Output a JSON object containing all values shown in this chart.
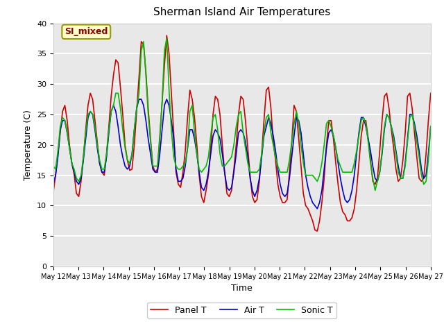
{
  "title": "Sherman Island Air Temperatures",
  "xlabel": "Time",
  "ylabel": "Temperature (C)",
  "annotation": "SI_mixed",
  "ylim": [
    0,
    40
  ],
  "xlim_days": [
    12,
    27
  ],
  "x_tick_labels": [
    "May 12",
    "May 13",
    "May 14",
    "May 15",
    "May 16",
    "May 17",
    "May 18",
    "May 19",
    "May 20",
    "May 21",
    "May 22",
    "May 23",
    "May 24",
    "May 25",
    "May 26",
    "May 27"
  ],
  "yticks": [
    0,
    5,
    10,
    15,
    20,
    25,
    30,
    35,
    40
  ],
  "legend_labels": [
    "Panel T",
    "Air T",
    "Sonic T"
  ],
  "legend_colors": [
    "#cc0000",
    "#0000cc",
    "#00bb00"
  ],
  "background_color": "#e8e8e8",
  "fig_background": "#ffffff",
  "grid_color": "#ffffff",
  "panel_t": [
    12.2,
    15.0,
    18.5,
    22.0,
    25.5,
    26.5,
    24.0,
    20.0,
    17.0,
    15.2,
    12.0,
    11.5,
    14.0,
    18.0,
    22.5,
    26.5,
    28.5,
    27.5,
    24.0,
    20.5,
    17.0,
    15.5,
    15.0,
    18.5,
    23.0,
    28.0,
    31.5,
    34.0,
    33.5,
    29.5,
    25.0,
    20.0,
    17.5,
    15.8,
    16.0,
    20.0,
    25.5,
    31.0,
    37.0,
    36.5,
    32.0,
    26.0,
    21.0,
    16.5,
    15.5,
    16.0,
    21.0,
    27.0,
    33.0,
    38.0,
    35.0,
    28.5,
    22.0,
    15.5,
    13.5,
    13.0,
    15.5,
    19.0,
    24.5,
    29.0,
    27.5,
    24.5,
    20.0,
    15.0,
    11.5,
    10.5,
    12.5,
    15.0,
    19.5,
    25.0,
    28.0,
    27.5,
    25.0,
    20.0,
    15.5,
    12.0,
    11.5,
    12.5,
    16.0,
    20.0,
    25.0,
    28.0,
    27.5,
    24.0,
    19.5,
    15.0,
    11.5,
    10.5,
    11.0,
    14.0,
    18.5,
    24.0,
    29.0,
    29.5,
    26.0,
    20.5,
    17.5,
    13.5,
    11.5,
    10.5,
    10.5,
    11.0,
    15.5,
    20.5,
    26.5,
    25.5,
    21.0,
    16.5,
    12.0,
    10.0,
    9.5,
    8.5,
    7.5,
    6.0,
    5.8,
    7.5,
    10.5,
    14.5,
    20.0,
    24.0,
    24.0,
    21.0,
    17.0,
    13.5,
    10.5,
    9.0,
    8.5,
    7.5,
    7.5,
    8.0,
    9.5,
    12.5,
    17.0,
    21.5,
    24.0,
    24.0,
    21.0,
    17.5,
    14.0,
    13.5,
    14.5,
    19.0,
    24.0,
    28.0,
    28.5,
    26.0,
    22.5,
    19.5,
    16.0,
    14.0,
    14.5,
    17.5,
    22.0,
    28.0,
    28.5,
    26.0,
    22.0,
    18.0,
    14.5,
    14.0,
    14.5,
    18.5,
    24.0,
    28.5
  ],
  "air_t": [
    13.5,
    15.0,
    18.0,
    22.5,
    24.0,
    24.0,
    22.0,
    19.5,
    17.0,
    15.5,
    14.0,
    13.5,
    14.5,
    17.5,
    21.0,
    24.5,
    25.5,
    25.0,
    22.5,
    19.5,
    17.0,
    15.5,
    15.5,
    18.0,
    22.0,
    25.5,
    26.5,
    25.5,
    23.0,
    20.0,
    18.0,
    16.5,
    16.0,
    16.5,
    18.5,
    22.5,
    26.0,
    27.5,
    27.5,
    26.5,
    24.0,
    21.0,
    18.5,
    16.0,
    15.5,
    15.5,
    18.5,
    22.5,
    26.5,
    27.5,
    26.5,
    24.0,
    21.0,
    16.0,
    14.0,
    14.0,
    14.5,
    16.5,
    19.5,
    22.5,
    22.5,
    21.0,
    18.5,
    15.5,
    13.0,
    12.5,
    13.5,
    15.5,
    18.5,
    21.5,
    22.5,
    22.0,
    21.0,
    18.5,
    15.5,
    13.0,
    12.5,
    13.0,
    15.5,
    18.5,
    22.0,
    22.5,
    22.0,
    20.5,
    18.0,
    14.5,
    12.5,
    11.5,
    12.5,
    14.5,
    18.0,
    21.5,
    23.0,
    24.5,
    23.5,
    21.5,
    19.0,
    16.0,
    13.5,
    12.0,
    11.5,
    12.0,
    14.5,
    18.0,
    21.5,
    24.5,
    24.0,
    22.0,
    18.5,
    15.0,
    13.0,
    11.5,
    10.5,
    10.0,
    9.5,
    10.5,
    12.5,
    16.0,
    19.5,
    22.0,
    22.5,
    21.5,
    19.5,
    17.0,
    14.5,
    12.5,
    11.0,
    10.5,
    11.0,
    12.5,
    15.0,
    18.5,
    22.0,
    24.5,
    24.5,
    23.0,
    21.0,
    19.0,
    16.5,
    14.5,
    14.0,
    15.5,
    18.5,
    22.5,
    25.0,
    24.5,
    23.0,
    21.5,
    19.0,
    16.5,
    14.5,
    14.5,
    17.0,
    21.0,
    25.0,
    25.0,
    23.5,
    21.5,
    19.0,
    16.0,
    14.5,
    15.0,
    18.5,
    23.0
  ],
  "sonic_t": [
    16.5,
    16.0,
    19.0,
    23.0,
    24.5,
    24.0,
    22.0,
    19.5,
    17.0,
    16.0,
    14.5,
    14.0,
    15.0,
    18.0,
    22.0,
    25.0,
    25.5,
    25.0,
    23.0,
    20.0,
    17.5,
    16.0,
    16.0,
    18.5,
    22.5,
    25.5,
    26.5,
    28.5,
    28.5,
    26.0,
    22.5,
    19.5,
    17.5,
    17.0,
    18.5,
    22.5,
    26.0,
    28.5,
    35.5,
    37.0,
    31.5,
    25.0,
    20.5,
    16.5,
    16.5,
    16.5,
    21.5,
    27.0,
    35.5,
    37.5,
    29.0,
    22.5,
    18.0,
    16.5,
    16.0,
    16.0,
    16.5,
    17.0,
    19.5,
    25.5,
    26.5,
    22.0,
    18.5,
    16.0,
    15.5,
    16.0,
    16.5,
    18.0,
    21.5,
    24.5,
    25.0,
    22.5,
    18.5,
    16.5,
    16.5,
    17.0,
    17.5,
    18.0,
    20.0,
    23.0,
    25.0,
    25.5,
    22.0,
    19.5,
    17.0,
    15.5,
    15.5,
    15.5,
    15.5,
    16.0,
    18.5,
    22.0,
    24.5,
    25.0,
    22.0,
    20.0,
    18.0,
    16.5,
    15.5,
    15.5,
    15.5,
    15.5,
    17.5,
    20.5,
    23.5,
    25.5,
    23.5,
    20.0,
    17.0,
    15.0,
    15.0,
    15.0,
    15.0,
    14.5,
    14.0,
    15.0,
    17.0,
    20.0,
    23.5,
    24.0,
    23.0,
    21.5,
    19.5,
    17.5,
    16.5,
    15.5,
    15.5,
    15.5,
    15.5,
    15.5,
    17.0,
    19.0,
    21.5,
    24.0,
    24.5,
    23.5,
    20.5,
    17.0,
    14.5,
    12.5,
    14.0,
    15.5,
    19.0,
    23.0,
    25.0,
    24.5,
    23.0,
    21.0,
    18.5,
    15.5,
    14.5,
    14.5,
    16.5,
    20.5,
    24.5,
    25.0,
    23.0,
    20.5,
    18.0,
    15.0,
    13.5,
    14.0,
    17.5,
    23.0
  ]
}
